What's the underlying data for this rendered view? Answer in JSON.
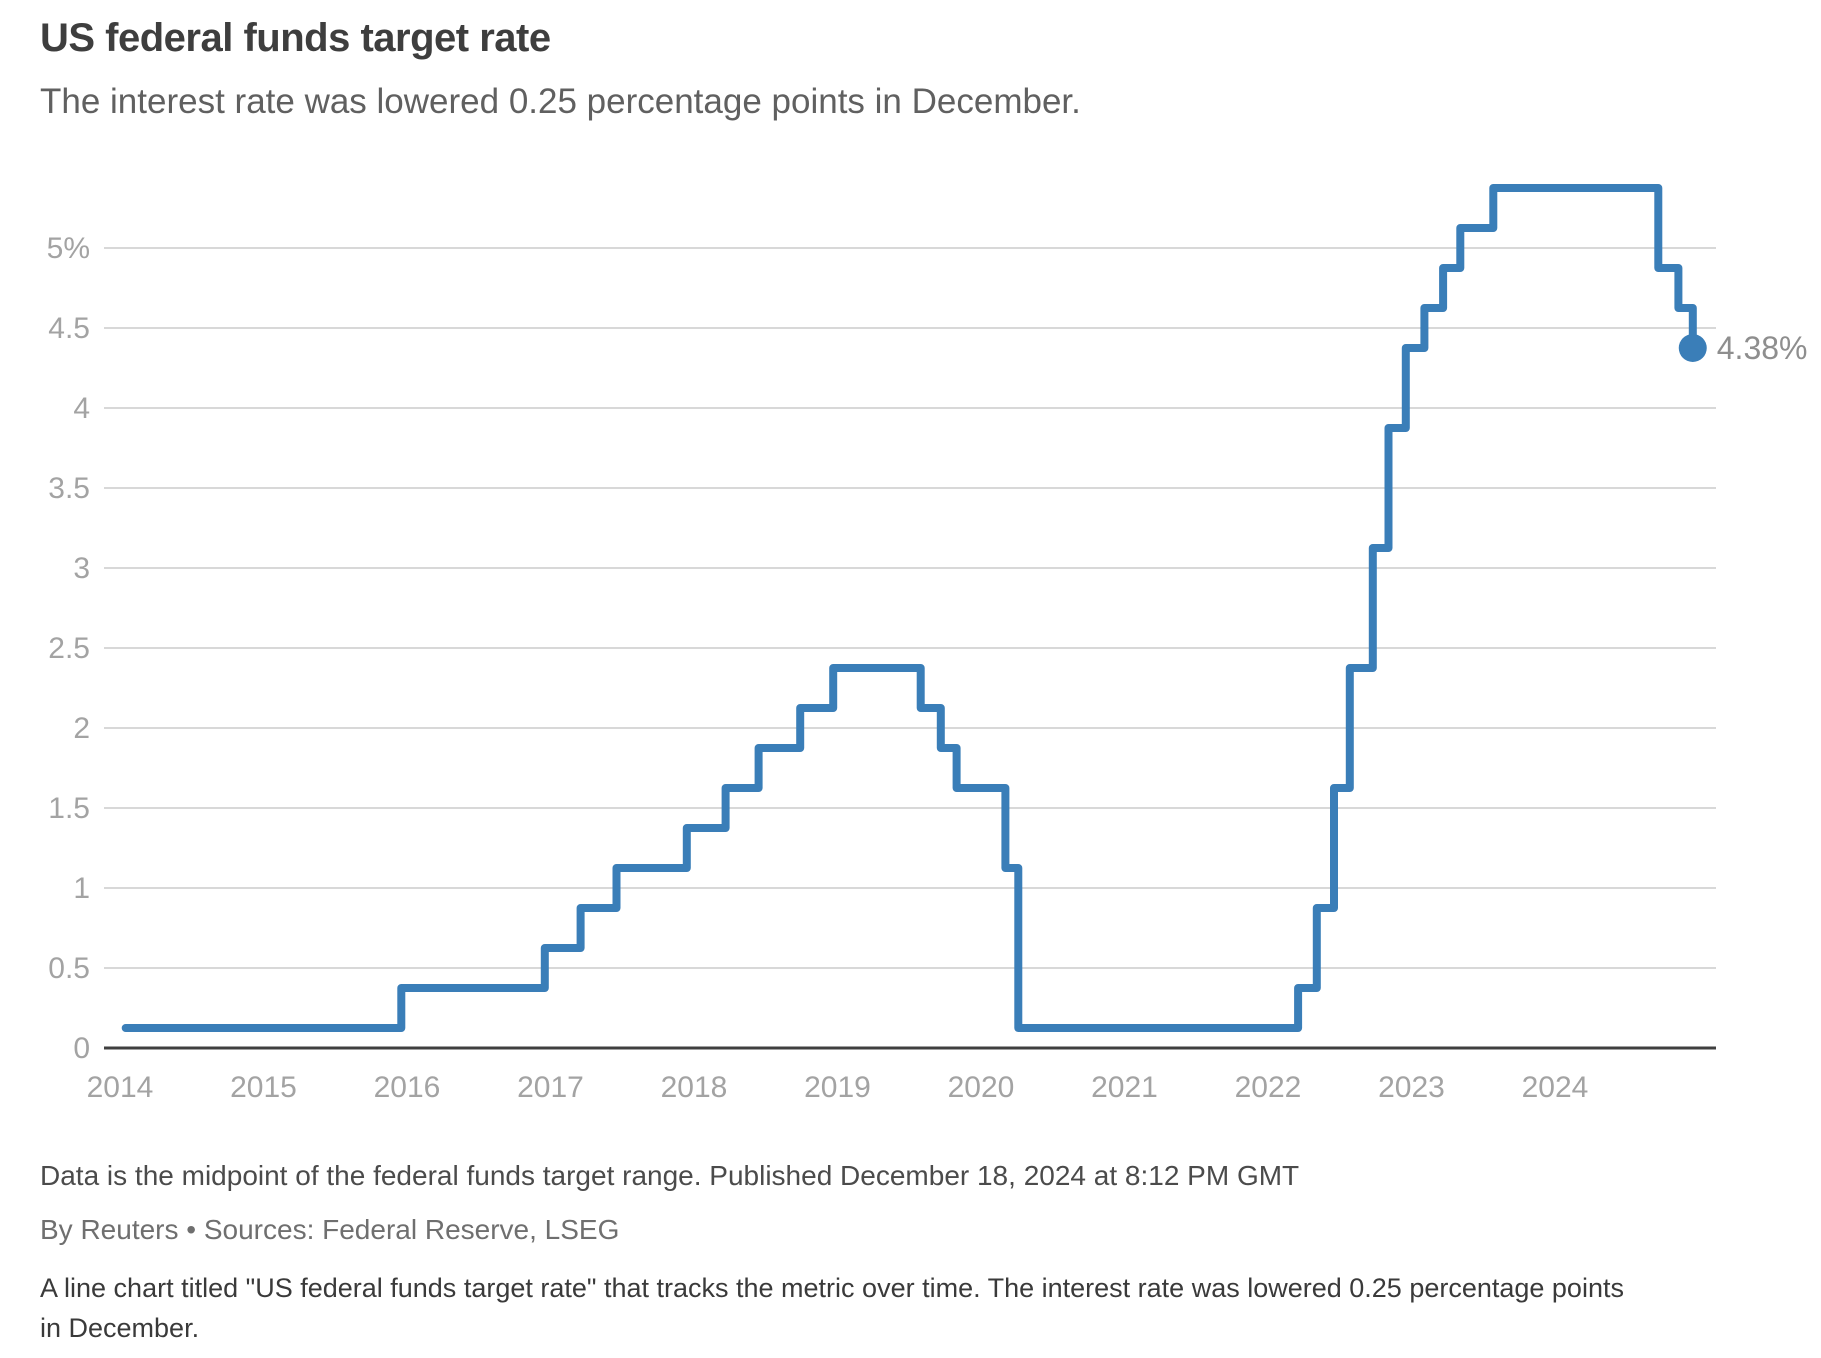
{
  "header": {
    "title": "US federal funds target rate",
    "subtitle": "The interest rate was lowered 0.25 percentage points in December."
  },
  "chart_data": {
    "type": "line",
    "subtype": "step-after",
    "title": "US federal funds target rate",
    "xlabel": "",
    "ylabel": "",
    "unit": "%",
    "grid": true,
    "legend_position": "none",
    "x_axis_range": [
      2014,
      2025
    ],
    "y_axis_range": [
      0,
      5.375
    ],
    "x_ticks": [
      {
        "v": 2014,
        "label": "2014"
      },
      {
        "v": 2015,
        "label": "2015"
      },
      {
        "v": 2016,
        "label": "2016"
      },
      {
        "v": 2017,
        "label": "2017"
      },
      {
        "v": 2018,
        "label": "2018"
      },
      {
        "v": 2019,
        "label": "2019"
      },
      {
        "v": 2020,
        "label": "2020"
      },
      {
        "v": 2021,
        "label": "2021"
      },
      {
        "v": 2022,
        "label": "2022"
      },
      {
        "v": 2023,
        "label": "2023"
      },
      {
        "v": 2024,
        "label": "2024"
      }
    ],
    "y_ticks": [
      {
        "v": 0,
        "label": "0"
      },
      {
        "v": 0.5,
        "label": "0.5"
      },
      {
        "v": 1,
        "label": "1"
      },
      {
        "v": 1.5,
        "label": "1.5"
      },
      {
        "v": 2,
        "label": "2"
      },
      {
        "v": 2.5,
        "label": "2.5"
      },
      {
        "v": 3,
        "label": "3"
      },
      {
        "v": 3.5,
        "label": "3.5"
      },
      {
        "v": 4,
        "label": "4"
      },
      {
        "v": 4.5,
        "label": "4.5"
      },
      {
        "v": 5,
        "label": "5%"
      }
    ],
    "series": [
      {
        "name": "US federal funds target rate (midpoint)",
        "points": [
          {
            "x": 2014.04,
            "y": 0.125
          },
          {
            "x": 2015.96,
            "y": 0.375
          },
          {
            "x": 2016.96,
            "y": 0.625
          },
          {
            "x": 2017.21,
            "y": 0.875
          },
          {
            "x": 2017.46,
            "y": 1.125
          },
          {
            "x": 2017.95,
            "y": 1.375
          },
          {
            "x": 2018.22,
            "y": 1.625
          },
          {
            "x": 2018.45,
            "y": 1.875
          },
          {
            "x": 2018.74,
            "y": 2.125
          },
          {
            "x": 2018.97,
            "y": 2.375
          },
          {
            "x": 2019.58,
            "y": 2.125
          },
          {
            "x": 2019.72,
            "y": 1.875
          },
          {
            "x": 2019.83,
            "y": 1.625
          },
          {
            "x": 2020.17,
            "y": 1.125
          },
          {
            "x": 2020.26,
            "y": 0.125
          },
          {
            "x": 2022.21,
            "y": 0.375
          },
          {
            "x": 2022.34,
            "y": 0.875
          },
          {
            "x": 2022.46,
            "y": 1.625
          },
          {
            "x": 2022.57,
            "y": 2.375
          },
          {
            "x": 2022.73,
            "y": 3.125
          },
          {
            "x": 2022.84,
            "y": 3.875
          },
          {
            "x": 2022.96,
            "y": 4.375
          },
          {
            "x": 2023.09,
            "y": 4.625
          },
          {
            "x": 2023.22,
            "y": 4.875
          },
          {
            "x": 2023.34,
            "y": 5.125
          },
          {
            "x": 2023.57,
            "y": 5.375
          },
          {
            "x": 2024.72,
            "y": 4.875
          },
          {
            "x": 2024.86,
            "y": 4.625
          },
          {
            "x": 2024.96,
            "y": 4.375
          }
        ]
      }
    ],
    "end_annotation": {
      "label": "4.38%",
      "value": 4.375
    },
    "colors": {
      "line": "#3a7eb8",
      "end_dot": "#3a7eb8",
      "grid": "#d8d8d8",
      "zero_axis": "#3f3f3f",
      "tick_text": "#a3a3a3",
      "end_label_text": "#8e8e8e"
    }
  },
  "footer": {
    "note": "Data is the midpoint of the federal funds target range. Published December 18, 2024 at 8:12 PM GMT",
    "byline": "By Reuters • Sources: Federal Reserve, LSEG",
    "alt_text": "A line chart titled \"US federal funds target rate\" that tracks the metric over time. The interest rate was lowered 0.25 percentage points in December."
  }
}
